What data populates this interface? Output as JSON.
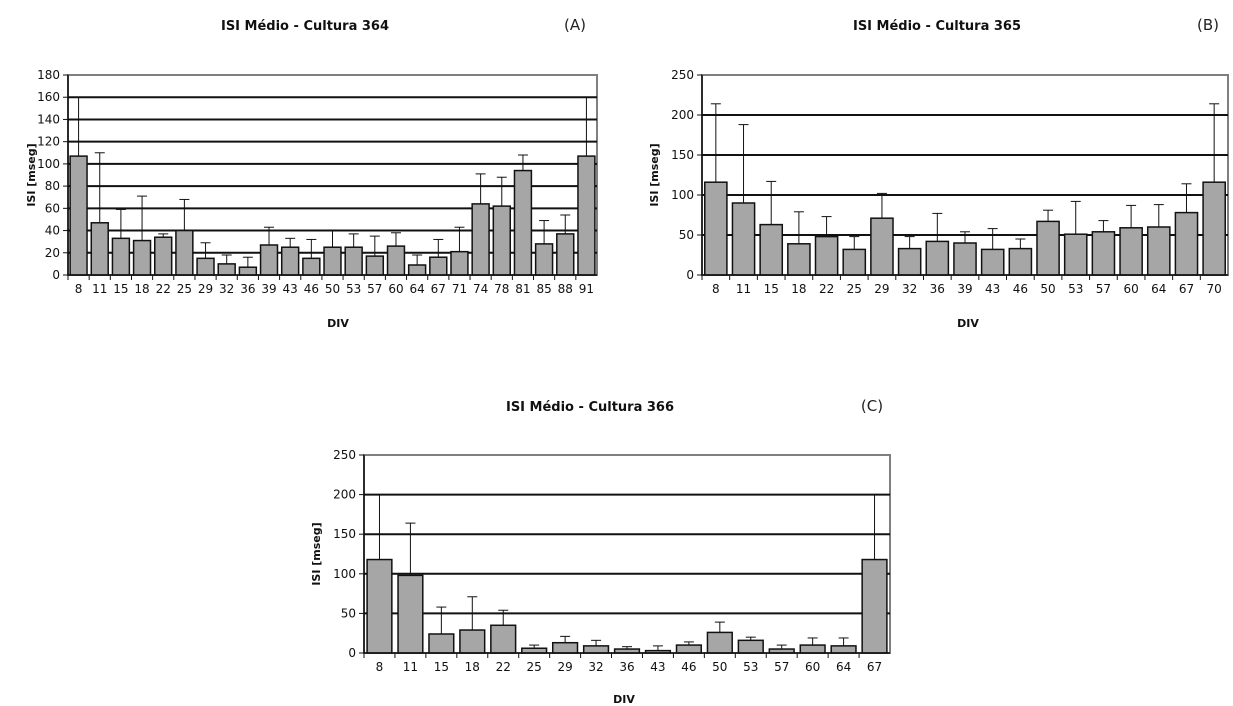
{
  "chart_data": [
    {
      "type": "bar",
      "title": "ISI Médio - Cultura 364",
      "panel_label": "(A)",
      "xlabel": "DIV",
      "ylabel": "ISI [mseg]",
      "ylim": [
        0,
        180
      ],
      "yticks": [
        0,
        20,
        40,
        60,
        80,
        100,
        120,
        140,
        160,
        180
      ],
      "grid": "horizontal",
      "categories": [
        "8",
        "11",
        "15",
        "18",
        "22",
        "25",
        "29",
        "32",
        "36",
        "39",
        "43",
        "46",
        "50",
        "53",
        "57",
        "60",
        "64",
        "67",
        "71",
        "74",
        "78",
        "81",
        "85",
        "88",
        "91"
      ],
      "values": [
        107,
        47,
        33,
        31,
        34,
        40,
        15,
        10,
        7,
        27,
        25,
        15,
        25,
        25,
        17,
        26,
        9,
        16,
        21,
        64,
        62,
        94,
        28,
        37,
        107
      ],
      "error": [
        53,
        63,
        26,
        40,
        3,
        28,
        14,
        8,
        9,
        16,
        8,
        17,
        15,
        12,
        18,
        12,
        9,
        16,
        22,
        27,
        26,
        14,
        21,
        17,
        53
      ],
      "colors": {
        "bar": "#a6a6a6",
        "stroke": "#111111",
        "frame": "#7f7f7f"
      }
    },
    {
      "type": "bar",
      "title": "ISI Médio - Cultura 365",
      "panel_label": "(B)",
      "xlabel": "DIV",
      "ylabel": "ISI [mseg]",
      "ylim": [
        0,
        250
      ],
      "yticks": [
        0,
        50,
        100,
        150,
        200,
        250
      ],
      "grid": "horizontal",
      "categories": [
        "8",
        "11",
        "15",
        "18",
        "22",
        "25",
        "29",
        "32",
        "36",
        "39",
        "43",
        "46",
        "50",
        "53",
        "57",
        "60",
        "64",
        "67",
        "70"
      ],
      "values": [
        116,
        90,
        63,
        39,
        48,
        32,
        71,
        33,
        42,
        40,
        32,
        33,
        67,
        51,
        54,
        59,
        60,
        78,
        116
      ],
      "error": [
        98,
        98,
        54,
        40,
        25,
        16,
        31,
        15,
        35,
        14,
        26,
        12,
        14,
        41,
        14,
        28,
        28,
        36,
        98
      ],
      "colors": {
        "bar": "#a6a6a6",
        "stroke": "#111111",
        "frame": "#7f7f7f"
      }
    },
    {
      "type": "bar",
      "title": "ISI Médio - Cultura 366",
      "panel_label": "(C)",
      "xlabel": "DIV",
      "ylabel": "ISI [mseg]",
      "ylim": [
        0,
        250
      ],
      "yticks": [
        0,
        50,
        100,
        150,
        200,
        250
      ],
      "grid": "horizontal",
      "categories": [
        "8",
        "11",
        "15",
        "18",
        "22",
        "25",
        "29",
        "32",
        "36",
        "43",
        "46",
        "50",
        "53",
        "57",
        "60",
        "64",
        "67"
      ],
      "values": [
        118,
        98,
        24,
        29,
        35,
        6,
        13,
        9,
        5,
        3,
        10,
        26,
        16,
        5,
        10,
        9,
        118
      ],
      "error": [
        82,
        66,
        34,
        42,
        19,
        4,
        8,
        7,
        3,
        6,
        4,
        13,
        4,
        5,
        9,
        10,
        82
      ],
      "colors": {
        "bar": "#a6a6a6",
        "stroke": "#111111",
        "frame": "#7f7f7f"
      }
    }
  ]
}
